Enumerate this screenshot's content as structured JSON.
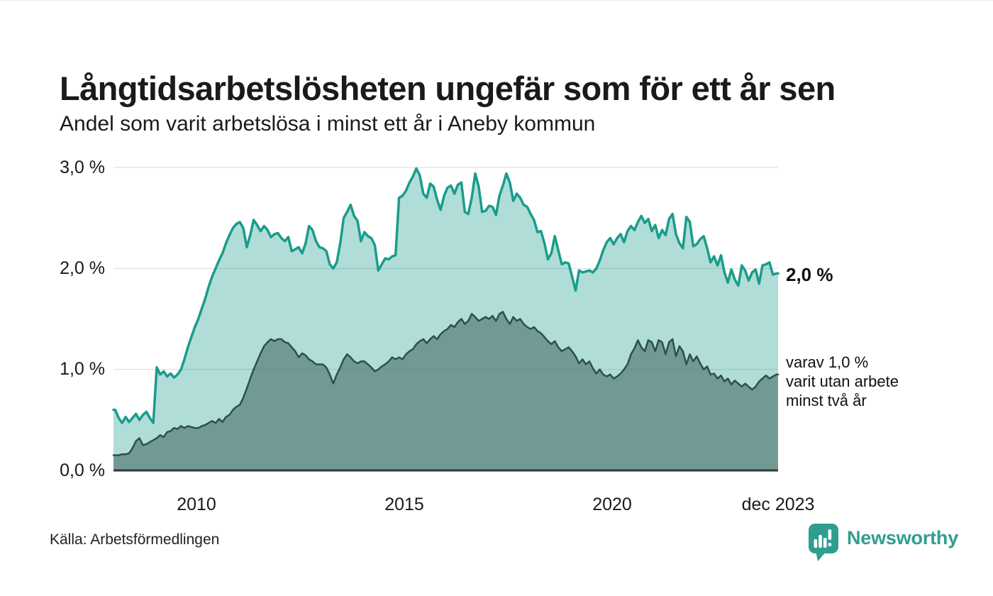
{
  "header": {
    "title": "Långtidsarbetslösheten ungefär som för ett år sen",
    "subtitle": "Andel som varit arbetslösa i minst ett år i Aneby kommun"
  },
  "chart_data": {
    "type": "area",
    "title": "Långtidsarbetslösheten ungefär som för ett år sen",
    "subtitle": "Andel som varit arbetslösa i minst ett år i Aneby kommun",
    "unit": "percent",
    "frequency": "monthly",
    "x_start": 2008.0,
    "x_end": 2024.0,
    "ylim": [
      0,
      3
    ],
    "grid": true,
    "grid_color": "#d8d8d8",
    "axis_color": "#2e3b39",
    "y_ticks": [
      {
        "v": 3,
        "label": "3,0 %"
      },
      {
        "v": 2,
        "label": "2,0 %"
      },
      {
        "v": 1,
        "label": "1,0 %"
      },
      {
        "v": 0,
        "label": "0,0 %"
      }
    ],
    "x_ticks": [
      {
        "t": 2010.0,
        "label": "2010"
      },
      {
        "t": 2015.0,
        "label": "2015"
      },
      {
        "t": 2020.0,
        "label": "2020"
      },
      {
        "t": 2023.96,
        "label": "dec 2023"
      }
    ],
    "series": [
      {
        "name": "Andel som varit arbetslösa i minst ett år",
        "color": "#1a9c8c",
        "fill": "rgba(26,156,140,0.34)",
        "stroke_width": 3.5,
        "last_value_label": "2,0 %",
        "values": [
          0.6,
          0.52,
          0.47,
          0.53,
          0.48,
          0.52,
          0.56,
          0.5,
          0.55,
          0.58,
          0.52,
          0.47,
          1.02,
          0.95,
          0.98,
          0.93,
          0.96,
          0.92,
          0.95,
          1.0,
          1.1,
          1.22,
          1.32,
          1.42,
          1.5,
          1.6,
          1.7,
          1.82,
          1.92,
          2.0,
          2.08,
          2.15,
          2.25,
          2.33,
          2.4,
          2.44,
          2.46,
          2.4,
          2.21,
          2.33,
          2.48,
          2.43,
          2.37,
          2.42,
          2.38,
          2.31,
          2.34,
          2.35,
          2.3,
          2.27,
          2.31,
          2.17,
          2.19,
          2.21,
          2.15,
          2.25,
          2.42,
          2.38,
          2.27,
          2.21,
          2.2,
          2.17,
          2.04,
          2.0,
          2.06,
          2.25,
          2.5,
          2.56,
          2.63,
          2.52,
          2.47,
          2.27,
          2.36,
          2.32,
          2.3,
          2.23,
          1.98,
          2.04,
          2.1,
          2.09,
          2.12,
          2.13,
          2.7,
          2.72,
          2.77,
          2.85,
          2.91,
          2.99,
          2.92,
          2.74,
          2.7,
          2.84,
          2.81,
          2.68,
          2.58,
          2.72,
          2.8,
          2.82,
          2.74,
          2.83,
          2.85,
          2.56,
          2.54,
          2.7,
          2.94,
          2.81,
          2.56,
          2.57,
          2.62,
          2.61,
          2.53,
          2.72,
          2.82,
          2.94,
          2.85,
          2.67,
          2.74,
          2.7,
          2.63,
          2.61,
          2.54,
          2.48,
          2.36,
          2.37,
          2.25,
          2.09,
          2.15,
          2.32,
          2.18,
          2.04,
          2.06,
          2.05,
          1.92,
          1.78,
          1.98,
          1.96,
          1.97,
          1.98,
          1.96,
          2.0,
          2.08,
          2.18,
          2.26,
          2.3,
          2.24,
          2.3,
          2.34,
          2.26,
          2.37,
          2.42,
          2.38,
          2.46,
          2.52,
          2.45,
          2.49,
          2.37,
          2.43,
          2.3,
          2.38,
          2.33,
          2.49,
          2.54,
          2.34,
          2.25,
          2.2,
          2.51,
          2.46,
          2.22,
          2.24,
          2.29,
          2.32,
          2.2,
          2.06,
          2.12,
          2.03,
          2.13,
          1.96,
          1.86,
          1.99,
          1.89,
          1.83,
          2.03,
          1.98,
          1.88,
          1.96,
          1.99,
          1.85,
          2.03,
          2.04,
          2.06,
          1.94,
          1.95
        ]
      },
      {
        "name": "varav varit utan arbete minst två år",
        "color": "#2e4f4a",
        "fill": "rgba(58,98,91,0.55)",
        "stroke_width": 2.5,
        "last_value_label": "1,0 %",
        "values": [
          0.15,
          0.15,
          0.16,
          0.16,
          0.17,
          0.22,
          0.29,
          0.32,
          0.25,
          0.26,
          0.28,
          0.3,
          0.32,
          0.35,
          0.33,
          0.38,
          0.39,
          0.42,
          0.41,
          0.44,
          0.42,
          0.44,
          0.43,
          0.42,
          0.42,
          0.44,
          0.45,
          0.47,
          0.49,
          0.47,
          0.51,
          0.48,
          0.53,
          0.55,
          0.6,
          0.63,
          0.65,
          0.72,
          0.81,
          0.91,
          1.0,
          1.08,
          1.16,
          1.23,
          1.27,
          1.3,
          1.28,
          1.3,
          1.3,
          1.27,
          1.26,
          1.22,
          1.18,
          1.12,
          1.16,
          1.14,
          1.1,
          1.08,
          1.05,
          1.05,
          1.05,
          1.02,
          0.95,
          0.86,
          0.95,
          1.02,
          1.1,
          1.15,
          1.12,
          1.08,
          1.06,
          1.08,
          1.08,
          1.05,
          1.02,
          0.98,
          1.0,
          1.03,
          1.05,
          1.08,
          1.12,
          1.1,
          1.12,
          1.1,
          1.15,
          1.18,
          1.2,
          1.25,
          1.28,
          1.3,
          1.26,
          1.3,
          1.33,
          1.3,
          1.35,
          1.38,
          1.4,
          1.44,
          1.42,
          1.47,
          1.5,
          1.45,
          1.48,
          1.55,
          1.52,
          1.48,
          1.5,
          1.52,
          1.5,
          1.53,
          1.48,
          1.55,
          1.57,
          1.5,
          1.45,
          1.52,
          1.48,
          1.5,
          1.45,
          1.42,
          1.4,
          1.42,
          1.38,
          1.36,
          1.32,
          1.28,
          1.25,
          1.28,
          1.22,
          1.18,
          1.2,
          1.22,
          1.18,
          1.13,
          1.06,
          1.1,
          1.05,
          1.08,
          1.01,
          0.96,
          1.0,
          0.95,
          0.93,
          0.95,
          0.91,
          0.93,
          0.96,
          1.0,
          1.05,
          1.15,
          1.21,
          1.29,
          1.22,
          1.18,
          1.29,
          1.27,
          1.18,
          1.29,
          1.27,
          1.15,
          1.27,
          1.3,
          1.13,
          1.23,
          1.18,
          1.05,
          1.15,
          1.08,
          1.13,
          1.06,
          1.0,
          1.03,
          0.95,
          0.96,
          0.91,
          0.94,
          0.88,
          0.91,
          0.85,
          0.89,
          0.86,
          0.83,
          0.86,
          0.83,
          0.8,
          0.83,
          0.88,
          0.91,
          0.94,
          0.91,
          0.93,
          0.95
        ]
      }
    ],
    "end_labels": {
      "primary": "2,0 %",
      "secondary_lines": [
        "varav 1,0 %",
        "varit utan arbete",
        "minst två år"
      ]
    }
  },
  "footer": {
    "source": "Källa: Arbetsförmedlingen",
    "brand": "Newsworthy"
  },
  "colors": {
    "accent": "#1a9c8c",
    "dark_series": "#2e4f4a",
    "brand": "#2f9e90"
  }
}
